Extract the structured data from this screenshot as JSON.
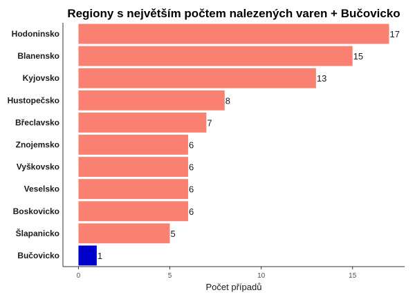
{
  "chart_data": {
    "type": "bar",
    "orientation": "horizontal",
    "title": "Regiony s největším počtem nalezených varen + Bučovicko",
    "xlabel": "Počet případů",
    "ylabel": "",
    "categories": [
      "Hodoninsko",
      "Blanensko",
      "Kyjovsko",
      "Hustopečsko",
      "Břeclavsko",
      "Znojemsko",
      "Vyškovsko",
      "Veselsko",
      "Boskovicko",
      "Šlapanicko",
      "Bučovicko"
    ],
    "values": [
      17,
      15,
      13,
      8,
      7,
      6,
      6,
      6,
      6,
      5,
      1
    ],
    "colors": [
      "#fa8072",
      "#fa8072",
      "#fa8072",
      "#fa8072",
      "#fa8072",
      "#fa8072",
      "#fa8072",
      "#fa8072",
      "#fa8072",
      "#fa8072",
      "#0000cd"
    ],
    "xticks": [
      0,
      5,
      10,
      15
    ],
    "xlim": [
      -0.85,
      17.85
    ],
    "grid": false,
    "legend": "none"
  }
}
